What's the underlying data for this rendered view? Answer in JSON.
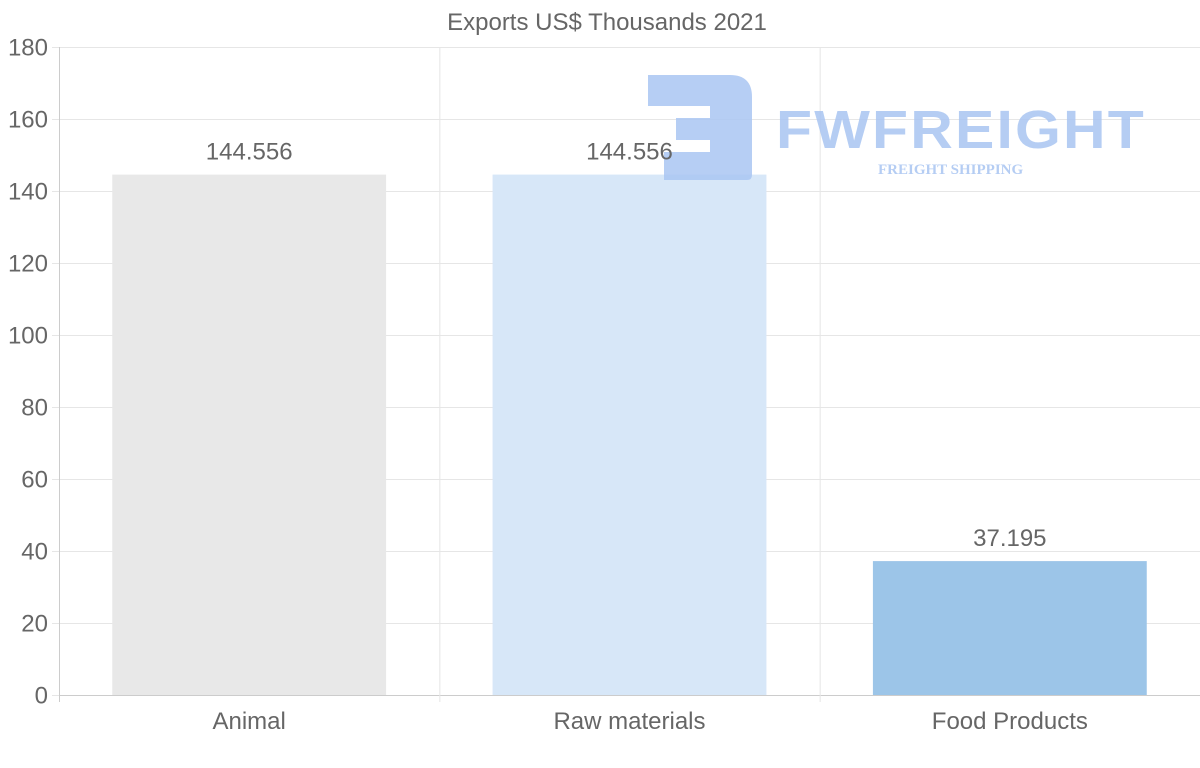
{
  "chart_data": {
    "type": "bar",
    "title": "Exports US$ Thousands 2021",
    "categories": [
      "Animal",
      "Raw materials",
      "Food Products"
    ],
    "values": [
      144.556,
      144.556,
      37.195
    ],
    "value_labels": [
      "144.556",
      "144.556",
      "37.195"
    ],
    "colors": [
      "#e8e8e8",
      "#d7e7f8",
      "#9cc5e8"
    ],
    "xlabel": "",
    "ylabel": "",
    "ylim": [
      0,
      180
    ],
    "yticks": [
      0,
      20,
      40,
      60,
      80,
      100,
      120,
      140,
      160,
      180
    ],
    "grid": true,
    "legend": "none"
  },
  "watermark": {
    "brand": "FWFREIGHT",
    "tagline": "FREIGHT SHIPPING",
    "color": "#a9c5f2"
  }
}
